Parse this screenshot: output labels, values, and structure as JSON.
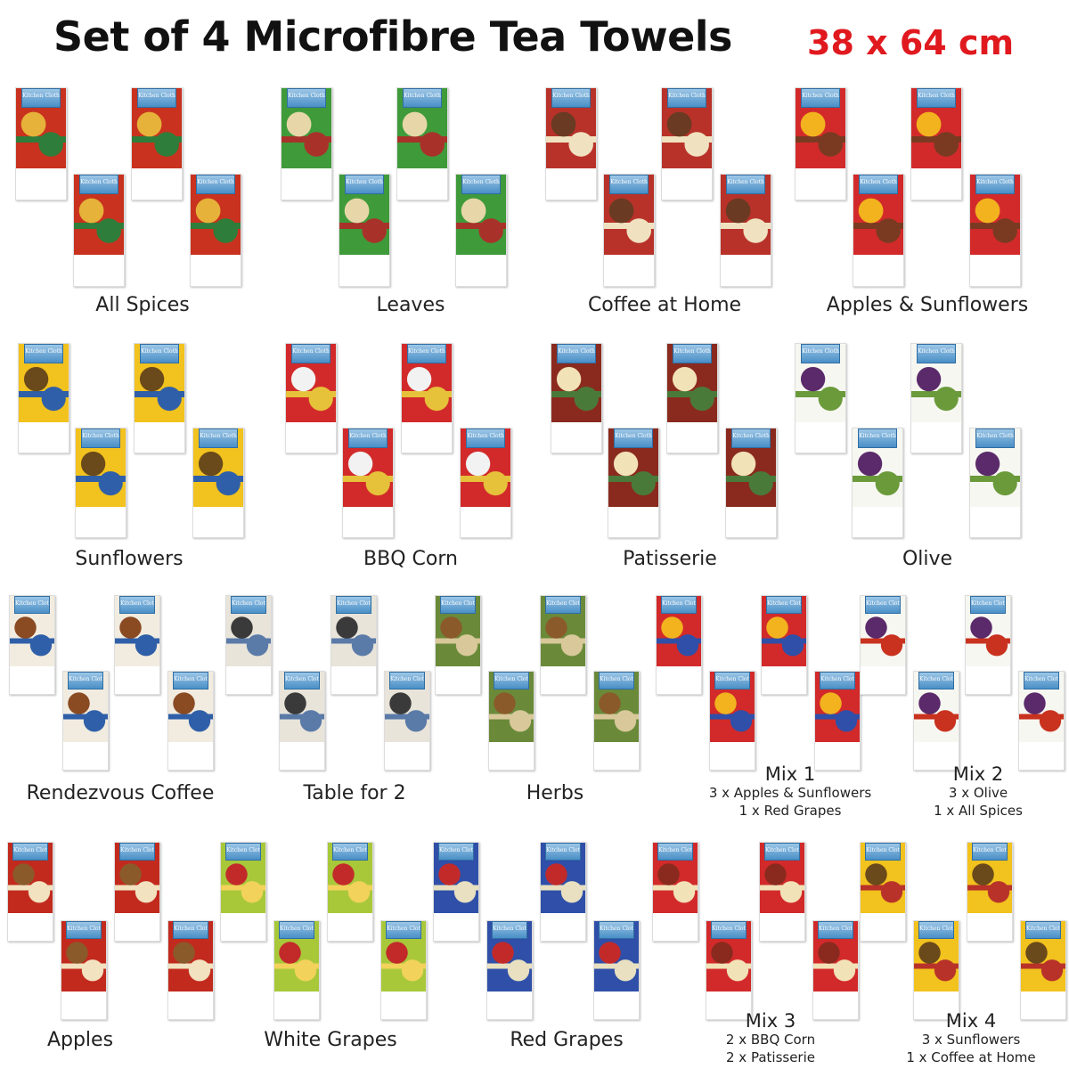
{
  "title": "Set of 4 Microfibre Tea Towels",
  "size": "38 x 64 cm",
  "colors": {
    "title": "#111111",
    "size": "#e0191f"
  },
  "card_text": "Kitchen Cloth",
  "rows": [
    [
      {
        "name": "All Spices",
        "sub": [],
        "colors": [
          "#c8321e",
          "#e6b23a",
          "#2f7d3a"
        ]
      },
      {
        "name": "Leaves",
        "sub": [],
        "colors": [
          "#3f9a3a",
          "#e7d7a8",
          "#a8322a"
        ]
      },
      {
        "name": "Coffee at Home",
        "sub": [],
        "colors": [
          "#b8322a",
          "#6a3a22",
          "#f0e2c0"
        ]
      },
      {
        "name": "Apples & Sunflowers",
        "sub": [],
        "colors": [
          "#d22a2a",
          "#f2b31e",
          "#7a3a22"
        ]
      }
    ],
    [
      {
        "name": "Sunflowers",
        "sub": [],
        "colors": [
          "#f2c21e",
          "#6a4a1a",
          "#2f5fa8"
        ]
      },
      {
        "name": "BBQ Corn",
        "sub": [],
        "colors": [
          "#d22a2a",
          "#f2f2f2",
          "#e6c23a"
        ]
      },
      {
        "name": "Patisserie",
        "sub": [],
        "colors": [
          "#8a2a1e",
          "#f2e2b8",
          "#4a7a3a"
        ]
      },
      {
        "name": "Olive",
        "sub": [],
        "colors": [
          "#f7f7f2",
          "#5a2a6a",
          "#6a9a3a"
        ]
      }
    ],
    [
      {
        "name": "Rendezvous Coffee",
        "sub": [],
        "colors": [
          "#f2ece0",
          "#8a4a22",
          "#2f5fa8"
        ]
      },
      {
        "name": "Table for 2",
        "sub": [],
        "colors": [
          "#e8e4da",
          "#3a3a3a",
          "#5a7aa8"
        ]
      },
      {
        "name": "Herbs",
        "sub": [],
        "colors": [
          "#6a8a3a",
          "#8a5a2a",
          "#d8c89a"
        ]
      },
      {
        "name": "Mix 1",
        "sub": [
          "3 x Apples & Sunflowers",
          "1 x Red Grapes"
        ],
        "colors": [
          "#d22a2a",
          "#f2b31e",
          "#2f4fa8"
        ]
      },
      {
        "name": "Mix 2",
        "sub": [
          "3 x Olive",
          "1 x All Spices"
        ],
        "colors": [
          "#f7f7f2",
          "#5a2a6a",
          "#c8321e"
        ]
      }
    ],
    [
      {
        "name": "Apples",
        "sub": [],
        "colors": [
          "#c22a1e",
          "#8a5a2a",
          "#f2e2c0"
        ]
      },
      {
        "name": "White Grapes",
        "sub": [],
        "colors": [
          "#a8c83a",
          "#c22a2a",
          "#f2d25a"
        ]
      },
      {
        "name": "Red Grapes",
        "sub": [],
        "colors": [
          "#2f4fa8",
          "#c22a2a",
          "#e8e0c0"
        ]
      },
      {
        "name": "Mix 3",
        "sub": [
          "2 x BBQ Corn",
          "2 x Patisserie"
        ],
        "colors": [
          "#d22a2a",
          "#8a2a1e",
          "#f2e2b8"
        ]
      },
      {
        "name": "Mix 4",
        "sub": [
          "3 x Sunflowers",
          "1 x Coffee at Home"
        ],
        "colors": [
          "#f2c21e",
          "#6a4a1a",
          "#b8322a"
        ]
      }
    ]
  ]
}
